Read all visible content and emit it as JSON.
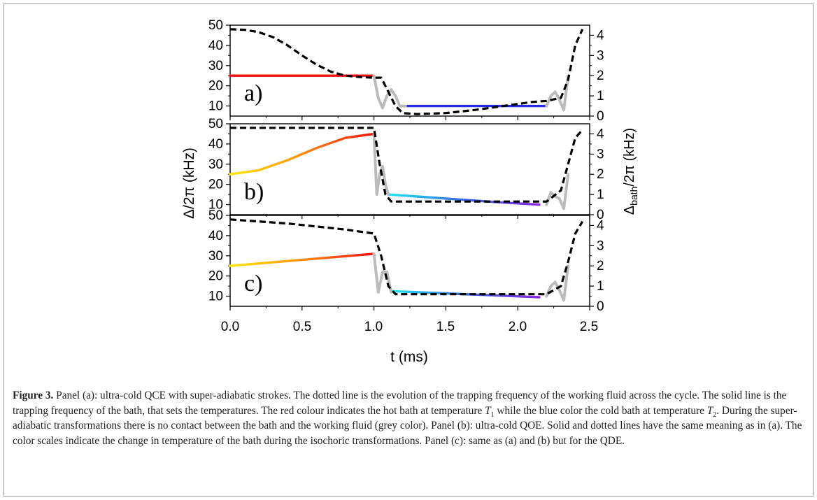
{
  "figure": {
    "x_label": "t (ms)",
    "x_ticks": [
      "0.0",
      "0.5",
      "1.0",
      "1.5",
      "2.0",
      "2.5"
    ],
    "y_left_label": "Δ/2π (kHz)",
    "y_left_ticks": [
      "50",
      "40",
      "30",
      "20",
      "10"
    ],
    "y_right_label_main": "Δ",
    "y_right_label_sub": "bath",
    "y_right_label_rest": "/2π (kHz)",
    "y_right_ticks": [
      "0",
      "1",
      "2",
      "3",
      "4"
    ],
    "panel_labels": [
      "a)",
      "b)",
      "c)"
    ]
  },
  "chart_data": [
    {
      "type": "line",
      "panel": "a)",
      "xlim": [
        0,
        2.5
      ],
      "ylim_left": [
        5,
        50
      ],
      "ylim_right": [
        0,
        4.5
      ],
      "series": [
        {
          "axis": "left",
          "style": "solid",
          "color": "#ee1111",
          "x": [
            0,
            1.0
          ],
          "y": [
            25,
            25
          ]
        },
        {
          "axis": "left",
          "style": "solid",
          "color": "#2a2ae0",
          "x": [
            1.23,
            2.2
          ],
          "y": [
            10,
            10
          ]
        },
        {
          "axis": "left",
          "style": "solid",
          "color": "#bbbbbb",
          "x": [
            1.0,
            1.03,
            1.06,
            1.09,
            1.12,
            1.15,
            1.18,
            1.22
          ],
          "y": [
            25,
            14,
            9,
            15,
            18,
            15,
            10,
            10
          ]
        },
        {
          "axis": "left",
          "style": "solid",
          "color": "#bbbbbb",
          "x": [
            2.2,
            2.23,
            2.26,
            2.29,
            2.32,
            2.35
          ],
          "y": [
            10,
            15,
            17,
            13,
            8,
            25
          ]
        },
        {
          "axis": "right",
          "style": "dashed",
          "color": "#000000",
          "x": [
            0,
            0.1,
            0.2,
            0.3,
            0.4,
            0.5,
            0.6,
            0.7,
            0.8,
            0.9,
            1.0,
            1.05,
            1.1,
            1.15,
            1.2,
            1.3,
            1.5,
            1.7,
            1.9,
            2.1,
            2.2,
            2.3,
            2.35,
            2.4,
            2.45
          ],
          "y": [
            4.3,
            4.27,
            4.15,
            3.9,
            3.5,
            3.0,
            2.55,
            2.2,
            2.0,
            1.93,
            1.9,
            1.9,
            1.2,
            0.5,
            0.15,
            0.1,
            0.15,
            0.3,
            0.5,
            0.7,
            0.75,
            0.9,
            1.8,
            3.5,
            4.3
          ]
        }
      ]
    },
    {
      "type": "line",
      "panel": "b)",
      "xlim": [
        0,
        2.5
      ],
      "ylim_left": [
        5,
        50
      ],
      "ylim_right": [
        0,
        4.5
      ],
      "series": [
        {
          "axis": "left",
          "style": "solid",
          "color": "gradient yellow-orange-red",
          "x": [
            0,
            0.2,
            0.4,
            0.6,
            0.8,
            1.0
          ],
          "y": [
            25,
            27,
            32,
            38,
            43,
            45
          ]
        },
        {
          "axis": "left",
          "style": "solid",
          "color": "gradient cyan-blue-violet",
          "x": [
            1.1,
            1.3,
            1.5,
            1.7,
            1.9,
            2.15
          ],
          "y": [
            15,
            14,
            13,
            12,
            11,
            10
          ]
        },
        {
          "axis": "left",
          "style": "solid",
          "color": "#bbbbbb",
          "x": [
            1.0,
            1.02,
            1.04,
            1.06,
            1.08,
            1.1
          ],
          "y": [
            45,
            15,
            25,
            29,
            20,
            15
          ]
        },
        {
          "axis": "left",
          "style": "solid",
          "color": "#bbbbbb",
          "x": [
            2.2,
            2.23,
            2.26,
            2.29,
            2.32,
            2.35
          ],
          "y": [
            10,
            16,
            14,
            13,
            8,
            25
          ]
        },
        {
          "axis": "right",
          "style": "dashed",
          "color": "#000000",
          "x": [
            0,
            0.5,
            1.0,
            1.04,
            1.08,
            1.12,
            1.5,
            2.0,
            2.2,
            2.3,
            2.35,
            2.4,
            2.45
          ],
          "y": [
            4.3,
            4.3,
            4.3,
            2.5,
            1.0,
            0.65,
            0.65,
            0.65,
            0.65,
            1.2,
            2.5,
            3.8,
            4.2
          ]
        }
      ]
    },
    {
      "type": "line",
      "panel": "c)",
      "xlim": [
        0,
        2.5
      ],
      "ylim_left": [
        5,
        50
      ],
      "ylim_right": [
        0,
        4.5
      ],
      "series": [
        {
          "axis": "left",
          "style": "solid",
          "color": "gradient yellow-orange-red",
          "x": [
            0,
            1.0
          ],
          "y": [
            25,
            31
          ]
        },
        {
          "axis": "left",
          "style": "solid",
          "color": "gradient cyan-blue-violet",
          "x": [
            1.12,
            2.15
          ],
          "y": [
            12.5,
            9.5
          ]
        },
        {
          "axis": "left",
          "style": "solid",
          "color": "#bbbbbb",
          "x": [
            1.0,
            1.03,
            1.06,
            1.09,
            1.12
          ],
          "y": [
            31,
            12,
            22,
            22,
            12
          ]
        },
        {
          "axis": "left",
          "style": "solid",
          "color": "#bbbbbb",
          "x": [
            2.2,
            2.23,
            2.26,
            2.29,
            2.32,
            2.35
          ],
          "y": [
            10,
            15,
            17,
            13,
            8,
            25
          ]
        },
        {
          "axis": "right",
          "style": "dashed",
          "color": "#000000",
          "x": [
            0,
            0.2,
            0.4,
            0.6,
            0.8,
            1.0,
            1.05,
            1.1,
            1.15,
            1.5,
            2.0,
            2.2,
            2.3,
            2.35,
            2.4,
            2.45
          ],
          "y": [
            4.3,
            4.2,
            4.1,
            3.95,
            3.8,
            3.6,
            2.5,
            1.0,
            0.6,
            0.6,
            0.6,
            0.6,
            1.0,
            2.2,
            3.6,
            4.2
          ]
        }
      ]
    }
  ],
  "caption": {
    "label": "Figure 3.",
    "text_1": " Panel (a): ultra-cold QCE with super-adiabatic strokes. The dotted line is the evolution of the trapping frequency of the working fluid across the cycle. The solid line is the trapping frequency of the bath, that sets the temperatures. The red colour indicates the hot bath at temperature ",
    "t1_symbol": "T",
    "t1_sub": "1",
    "text_2": " while the blue color the cold bath at temperature ",
    "t2_symbol": "T",
    "t2_sub": "2",
    "text_3": ". During the super-adiabatic transformations there is no contact between the bath and the working fluid (grey color). Panel (b): ultra-cold QOE. Solid and dotted lines have the same meaning as in (a). The color scales indicate the change in temperature of the bath during the isochoric transformations. Panel (c): same as (a) and (b) but for the QDE."
  }
}
